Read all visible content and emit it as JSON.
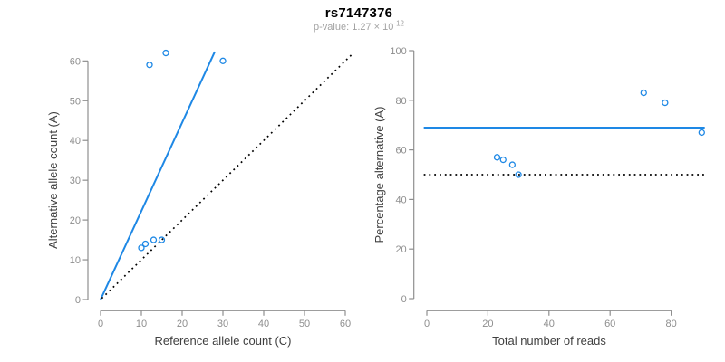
{
  "header": {
    "title": "rs7147376",
    "subtitle_base": "p-value: 1.27 × 10",
    "subtitle_exponent": "-12"
  },
  "colors": {
    "accent_blue": "#1E88E5",
    "reference_black": "#000000",
    "axis_gray": "#8f8f8f",
    "tick_label_gray": "#8e8e8e",
    "axis_label_dark": "#404040",
    "title_black": "#000000",
    "subtitle_gray": "#a3a3a3",
    "background": "#ffffff"
  },
  "chart_data": [
    {
      "type": "scatter",
      "panel": "left",
      "title": "",
      "xlabel": "Reference allele count (C)",
      "ylabel": "Alternative allele count (A)",
      "xlim": [
        0,
        62
      ],
      "ylim": [
        0,
        63
      ],
      "xticks": [
        0,
        10,
        20,
        30,
        40,
        50,
        60
      ],
      "yticks": [
        0,
        10,
        20,
        30,
        40,
        50,
        60
      ],
      "grid": false,
      "legend": false,
      "marker": "open-circle",
      "points": [
        [
          10,
          13
        ],
        [
          11,
          14
        ],
        [
          13,
          15
        ],
        [
          15,
          15
        ],
        [
          12,
          59
        ],
        [
          16,
          62
        ],
        [
          30,
          60
        ]
      ],
      "lines": [
        {
          "name": "fit-line",
          "style": "solid",
          "color": "#1E88E5",
          "x1": 0,
          "y1": 0,
          "x2": 28,
          "y2": 62.3
        },
        {
          "name": "identity-line",
          "style": "dotted",
          "color": "#000000",
          "x1": 0.3,
          "y1": 0.3,
          "x2": 61.5,
          "y2": 61.5
        }
      ]
    },
    {
      "type": "scatter",
      "panel": "right",
      "title": "",
      "xlabel": "Total number of reads",
      "ylabel": "Percentage alternative (A)",
      "xlim": [
        0,
        94
      ],
      "ylim": [
        0,
        100
      ],
      "xticks": [
        0,
        20,
        40,
        60,
        80
      ],
      "yticks": [
        0,
        20,
        40,
        60,
        80,
        100
      ],
      "grid": false,
      "legend": false,
      "marker": "open-circle",
      "points": [
        [
          23,
          57
        ],
        [
          25,
          56
        ],
        [
          28,
          54
        ],
        [
          30,
          50
        ],
        [
          71,
          83
        ],
        [
          78,
          79
        ],
        [
          90,
          67
        ]
      ],
      "lines": [
        {
          "name": "mean-percentage-line",
          "style": "solid",
          "color": "#1E88E5",
          "y": 69,
          "x1": -1,
          "x2": 91
        },
        {
          "name": "fifty-percent-line",
          "style": "dotted",
          "color": "#000000",
          "y": 50,
          "x1": -1,
          "x2": 91
        }
      ]
    }
  ]
}
